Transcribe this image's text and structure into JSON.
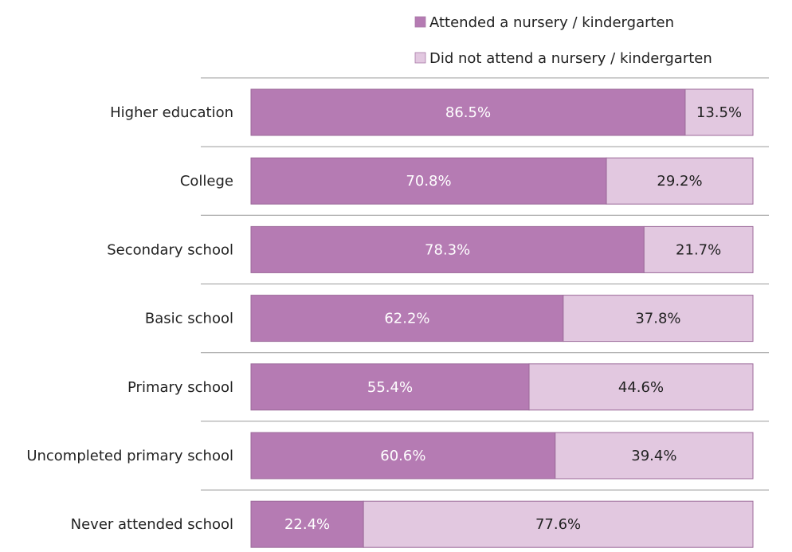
{
  "chart_data": {
    "type": "bar",
    "orientation": "horizontal",
    "stacked": true,
    "percent": true,
    "categories": [
      "Higher education",
      "College",
      "Secondary school",
      "Basic school",
      "Primary school",
      "Uncompleted primary school",
      "Never attended school"
    ],
    "series": [
      {
        "name": "Attended a nursery / kindergarten",
        "color": "#b57bb3",
        "values": [
          86.5,
          70.8,
          78.3,
          62.2,
          55.4,
          60.6,
          22.4
        ],
        "labels": [
          "86.5%",
          "70.8%",
          "78.3%",
          "62.2%",
          "55.4%",
          "60.6%",
          "22.4%"
        ]
      },
      {
        "name": "Did not attend a nursery / kindergarten",
        "color": "#e2c8e0",
        "values": [
          13.5,
          29.2,
          21.7,
          37.8,
          44.6,
          39.4,
          77.6
        ],
        "labels": [
          "13.5%",
          "29.2%",
          "21.7%",
          "37.8%",
          "44.6%",
          "39.4%",
          "77.6%"
        ]
      }
    ],
    "xlim": [
      0,
      100
    ],
    "legend_position": "top-right",
    "grid": "horizontal separators between categories"
  }
}
